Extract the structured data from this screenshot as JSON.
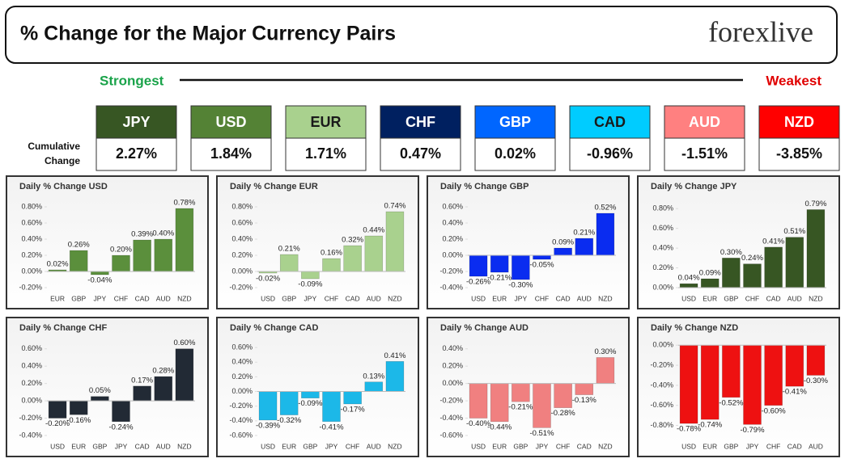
{
  "header": {
    "title": "% Change for the Major Currency Pairs",
    "logo": "forexlive"
  },
  "ranking": {
    "strongest_label": "Strongest",
    "weakest_label": "Weakest",
    "row_label": [
      "Cumulative",
      "Change"
    ],
    "currencies": [
      "JPY",
      "USD",
      "EUR",
      "CHF",
      "GBP",
      "CAD",
      "AUD",
      "NZD"
    ],
    "values": [
      "2.27%",
      "1.84%",
      "1.71%",
      "0.47%",
      "0.02%",
      "-0.96%",
      "-1.51%",
      "-3.85%"
    ],
    "colors": [
      "#375623",
      "#548235",
      "#a9d18e",
      "#002060",
      "#0066ff",
      "#00ccff",
      "#ff8080",
      "#ff0000"
    ],
    "text_colors": [
      "#ffffff",
      "#ffffff",
      "#1a1a1a",
      "#ffffff",
      "#ffffff",
      "#1a1a1a",
      "#ffffff",
      "#ffffff"
    ]
  },
  "chart_data": [
    {
      "type": "bar",
      "title": "Daily % Change USD",
      "color": "#5b8f3c",
      "categories": [
        "EUR",
        "GBP",
        "JPY",
        "CHF",
        "CAD",
        "AUD",
        "NZD"
      ],
      "values": [
        0.02,
        0.26,
        -0.04,
        0.2,
        0.39,
        0.4,
        0.78
      ],
      "value_labels": [
        "0.02%",
        "0.26%",
        "-0.04%",
        "0.20%",
        "0.39%",
        "0.40%",
        "0.78%"
      ],
      "ylim": [
        -0.2,
        0.9
      ],
      "yticks": [
        {
          "value": -0.2,
          "label": "-0.20%"
        },
        {
          "value": 0,
          "label": "0.00%"
        },
        {
          "value": 0.2,
          "label": "0.20%"
        },
        {
          "value": 0.4,
          "label": "0.40%"
        },
        {
          "value": 0.6,
          "label": "0.60%"
        },
        {
          "value": 0.8,
          "label": "0.80%"
        }
      ]
    },
    {
      "type": "bar",
      "title": "Daily % Change EUR",
      "color": "#a9d18e",
      "categories": [
        "USD",
        "GBP",
        "JPY",
        "CHF",
        "CAD",
        "AUD",
        "NZD"
      ],
      "values": [
        -0.02,
        0.21,
        -0.09,
        0.16,
        0.32,
        0.44,
        0.74
      ],
      "value_labels": [
        "-0.02%",
        "0.21%",
        "-0.09%",
        "0.16%",
        "0.32%",
        "0.44%",
        "0.74%"
      ],
      "ylim": [
        -0.2,
        0.9
      ],
      "yticks": [
        {
          "value": -0.2,
          "label": "-0.20%"
        },
        {
          "value": 0,
          "label": "0.00%"
        },
        {
          "value": 0.2,
          "label": "0.20%"
        },
        {
          "value": 0.4,
          "label": "0.40%"
        },
        {
          "value": 0.6,
          "label": "0.60%"
        },
        {
          "value": 0.8,
          "label": "0.80%"
        }
      ]
    },
    {
      "type": "bar",
      "title": "Daily % Change GBP",
      "color": "#0a2cf0",
      "categories": [
        "USD",
        "EUR",
        "JPY",
        "CHF",
        "CAD",
        "AUD",
        "NZD"
      ],
      "values": [
        -0.26,
        -0.21,
        -0.3,
        -0.05,
        0.09,
        0.21,
        0.52
      ],
      "value_labels": [
        "-0.26%",
        "-0.21%",
        "-0.30%",
        "-0.05%",
        "0.09%",
        "0.21%",
        "0.52%"
      ],
      "ylim": [
        -0.4,
        0.7
      ],
      "yticks": [
        {
          "value": -0.4,
          "label": "-0.40%"
        },
        {
          "value": -0.2,
          "label": "-0.20%"
        },
        {
          "value": 0,
          "label": "0.00%"
        },
        {
          "value": 0.2,
          "label": "0.20%"
        },
        {
          "value": 0.4,
          "label": "0.40%"
        },
        {
          "value": 0.6,
          "label": "0.60%"
        }
      ]
    },
    {
      "type": "bar",
      "title": "Daily % Change JPY",
      "color": "#375623",
      "categories": [
        "USD",
        "EUR",
        "GBP",
        "CHF",
        "CAD",
        "AUD",
        "NZD"
      ],
      "values": [
        0.04,
        0.09,
        0.3,
        0.24,
        0.41,
        0.51,
        0.79
      ],
      "value_labels": [
        "0.04%",
        "0.09%",
        "0.30%",
        "0.24%",
        "0.41%",
        "0.51%",
        "0.79%"
      ],
      "ylim": [
        0,
        0.9
      ],
      "yticks": [
        {
          "value": 0,
          "label": "0.00%"
        },
        {
          "value": 0.2,
          "label": "0.20%"
        },
        {
          "value": 0.4,
          "label": "0.40%"
        },
        {
          "value": 0.6,
          "label": "0.60%"
        },
        {
          "value": 0.8,
          "label": "0.80%"
        }
      ]
    },
    {
      "type": "bar",
      "title": "Daily % Change CHF",
      "color": "#222a35",
      "categories": [
        "USD",
        "EUR",
        "GBP",
        "JPY",
        "CAD",
        "AUD",
        "NZD"
      ],
      "values": [
        -0.2,
        -0.16,
        0.05,
        -0.24,
        0.17,
        0.28,
        0.6
      ],
      "value_labels": [
        "-0.20%",
        "-0.16%",
        "0.05%",
        "-0.24%",
        "0.17%",
        "0.28%",
        "0.60%"
      ],
      "ylim": [
        -0.4,
        0.7
      ],
      "yticks": [
        {
          "value": -0.4,
          "label": "-0.40%"
        },
        {
          "value": -0.2,
          "label": "-0.20%"
        },
        {
          "value": 0,
          "label": "0.00%"
        },
        {
          "value": 0.2,
          "label": "0.20%"
        },
        {
          "value": 0.4,
          "label": "0.40%"
        },
        {
          "value": 0.6,
          "label": "0.60%"
        }
      ]
    },
    {
      "type": "bar",
      "title": "Daily % Change CAD",
      "color": "#1cb8e8",
      "categories": [
        "USD",
        "EUR",
        "GBP",
        "JPY",
        "CHF",
        "AUD",
        "NZD"
      ],
      "values": [
        -0.39,
        -0.32,
        -0.09,
        -0.41,
        -0.17,
        0.13,
        0.41
      ],
      "value_labels": [
        "-0.39%",
        "-0.32%",
        "-0.09%",
        "-0.41%",
        "-0.17%",
        "0.13%",
        "0.41%"
      ],
      "ylim": [
        -0.6,
        0.7
      ],
      "yticks": [
        {
          "value": -0.6,
          "label": "-0.60%"
        },
        {
          "value": -0.4,
          "label": "-0.40%"
        },
        {
          "value": -0.2,
          "label": "-0.20%"
        },
        {
          "value": 0,
          "label": "0.00%"
        },
        {
          "value": 0.2,
          "label": "0.20%"
        },
        {
          "value": 0.4,
          "label": "0.40%"
        },
        {
          "value": 0.6,
          "label": "0.60%"
        }
      ]
    },
    {
      "type": "bar",
      "title": "Daily % Change AUD",
      "color": "#f08080",
      "categories": [
        "USD",
        "EUR",
        "GBP",
        "JPY",
        "CHF",
        "CAD",
        "NZD"
      ],
      "values": [
        -0.4,
        -0.44,
        -0.21,
        -0.51,
        -0.28,
        -0.13,
        0.3
      ],
      "value_labels": [
        "-0.40%",
        "-0.44%",
        "-0.21%",
        "-0.51%",
        "-0.28%",
        "-0.13%",
        "0.30%"
      ],
      "ylim": [
        -0.6,
        0.5
      ],
      "yticks": [
        {
          "value": -0.6,
          "label": "-0.60%"
        },
        {
          "value": -0.4,
          "label": "-0.40%"
        },
        {
          "value": -0.2,
          "label": "-0.20%"
        },
        {
          "value": 0,
          "label": "0.00%"
        },
        {
          "value": 0.2,
          "label": "0.20%"
        },
        {
          "value": 0.4,
          "label": "0.40%"
        }
      ]
    },
    {
      "type": "bar",
      "title": "Daily % Change NZD",
      "color": "#ee1111",
      "categories": [
        "USD",
        "EUR",
        "GBP",
        "JPY",
        "CHF",
        "CAD",
        "AUD"
      ],
      "values": [
        -0.78,
        -0.74,
        -0.52,
        -0.79,
        -0.6,
        -0.41,
        -0.3
      ],
      "value_labels": [
        "-0.78%",
        "-0.74%",
        "-0.52%",
        "-0.79%",
        "-0.60%",
        "-0.41%",
        "-0.30%"
      ],
      "ylim": [
        -0.9,
        0.05
      ],
      "yticks": [
        {
          "value": -0.8,
          "label": "-0.80%"
        },
        {
          "value": -0.6,
          "label": "-0.60%"
        },
        {
          "value": -0.4,
          "label": "-0.40%"
        },
        {
          "value": -0.2,
          "label": "-0.20%"
        },
        {
          "value": 0,
          "label": "0.00%"
        }
      ]
    }
  ]
}
